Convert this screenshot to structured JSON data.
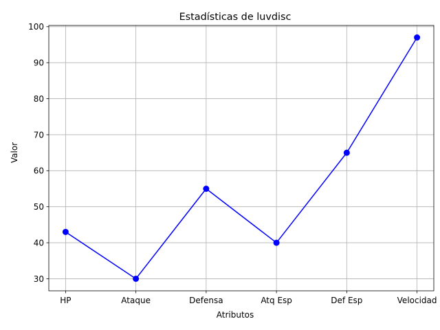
{
  "chart_data": {
    "type": "line",
    "title": "Estadísticas de luvdisc",
    "xlabel": "Atributos",
    "ylabel": "Valor",
    "categories": [
      "HP",
      "Ataque",
      "Defensa",
      "Atq Esp",
      "Def Esp",
      "Velocidad"
    ],
    "series": [
      {
        "values": [
          43,
          30,
          55,
          40,
          65,
          97
        ],
        "color": "#0000ff",
        "marker": "circle"
      }
    ],
    "ylim": [
      26.65,
      100.35
    ],
    "yticks": [
      30,
      40,
      50,
      60,
      70,
      80,
      90,
      100
    ],
    "grid": true,
    "grid_color": "#b0b0b0"
  }
}
